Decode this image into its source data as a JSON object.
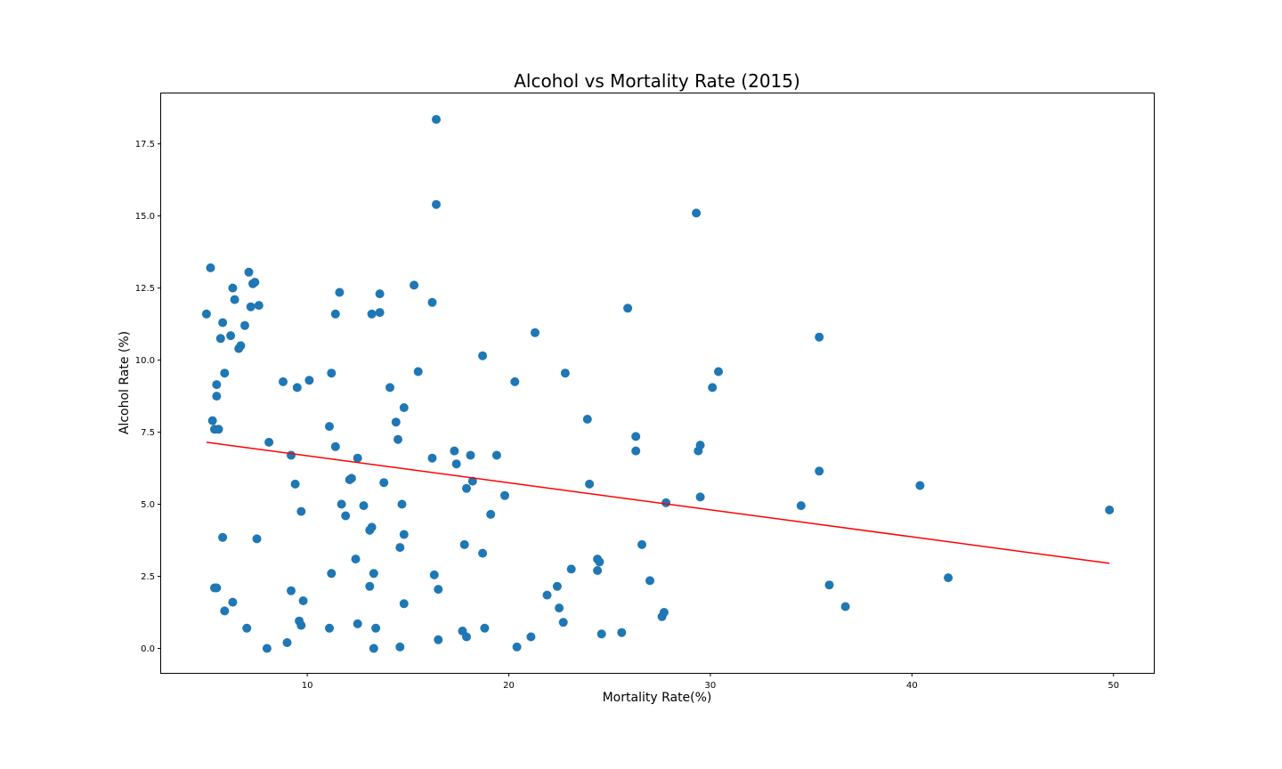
{
  "chart_data": {
    "type": "scatter",
    "title": "Alcohol vs Mortality Rate (2015)",
    "xlabel": "Mortality Rate(%)",
    "ylabel": "Alcohol Rate (%)",
    "xlim": [
      2.75,
      52.0
    ],
    "ylim": [
      -0.85,
      19.25
    ],
    "xticks": [
      10,
      20,
      30,
      40,
      50
    ],
    "xtick_labels": [
      "10",
      "20",
      "30",
      "40",
      "50"
    ],
    "yticks": [
      0.0,
      2.5,
      5.0,
      7.5,
      10.0,
      12.5,
      15.0,
      17.5
    ],
    "ytick_labels": [
      "0.0",
      "2.5",
      "5.0",
      "7.5",
      "10.0",
      "12.5",
      "15.0",
      "17.5"
    ],
    "grid": false,
    "point_color": "#1f77b4",
    "line_color": "#ff0000",
    "regression": {
      "x": [
        5.0,
        49.8
      ],
      "y": [
        7.15,
        2.95
      ]
    },
    "points": [
      [
        5.0,
        11.6
      ],
      [
        5.2,
        13.2
      ],
      [
        5.3,
        7.9
      ],
      [
        5.4,
        7.6
      ],
      [
        5.5,
        9.15
      ],
      [
        5.5,
        8.75
      ],
      [
        5.6,
        7.6
      ],
      [
        5.4,
        2.1
      ],
      [
        5.5,
        2.1
      ],
      [
        5.7,
        10.75
      ],
      [
        5.8,
        11.3
      ],
      [
        5.8,
        3.85
      ],
      [
        5.9,
        9.55
      ],
      [
        5.9,
        1.3
      ],
      [
        6.2,
        10.85
      ],
      [
        6.3,
        12.5
      ],
      [
        6.3,
        1.6
      ],
      [
        6.4,
        12.1
      ],
      [
        6.6,
        10.4
      ],
      [
        6.7,
        10.5
      ],
      [
        6.9,
        11.2
      ],
      [
        7.0,
        0.7
      ],
      [
        7.1,
        13.05
      ],
      [
        7.2,
        11.85
      ],
      [
        7.3,
        12.65
      ],
      [
        7.4,
        12.7
      ],
      [
        7.5,
        3.8
      ],
      [
        7.6,
        11.9
      ],
      [
        8.1,
        7.15
      ],
      [
        8.0,
        0.0
      ],
      [
        8.8,
        9.25
      ],
      [
        9.0,
        0.2
      ],
      [
        9.2,
        6.7
      ],
      [
        9.2,
        2.0
      ],
      [
        9.4,
        5.7
      ],
      [
        9.5,
        9.05
      ],
      [
        9.6,
        0.95
      ],
      [
        9.7,
        4.75
      ],
      [
        9.7,
        0.8
      ],
      [
        9.8,
        1.65
      ],
      [
        10.1,
        9.3
      ],
      [
        11.2,
        9.55
      ],
      [
        11.1,
        7.7
      ],
      [
        11.1,
        0.7
      ],
      [
        11.2,
        2.6
      ],
      [
        11.4,
        7.0
      ],
      [
        11.4,
        11.6
      ],
      [
        11.6,
        12.35
      ],
      [
        11.7,
        5.0
      ],
      [
        11.9,
        4.6
      ],
      [
        12.1,
        5.85
      ],
      [
        12.2,
        5.9
      ],
      [
        12.4,
        3.1
      ],
      [
        12.5,
        6.6
      ],
      [
        12.5,
        0.85
      ],
      [
        12.8,
        4.95
      ],
      [
        13.1,
        4.1
      ],
      [
        13.1,
        2.15
      ],
      [
        13.2,
        4.2
      ],
      [
        13.2,
        11.6
      ],
      [
        13.3,
        2.6
      ],
      [
        13.3,
        0.0
      ],
      [
        13.4,
        0.7
      ],
      [
        13.6,
        11.65
      ],
      [
        13.6,
        12.3
      ],
      [
        13.8,
        5.75
      ],
      [
        14.1,
        9.05
      ],
      [
        14.4,
        7.85
      ],
      [
        14.5,
        7.25
      ],
      [
        14.6,
        3.5
      ],
      [
        14.6,
        0.05
      ],
      [
        14.7,
        5.0
      ],
      [
        14.8,
        8.35
      ],
      [
        14.8,
        3.95
      ],
      [
        14.8,
        1.55
      ],
      [
        15.3,
        12.6
      ],
      [
        15.5,
        9.6
      ],
      [
        16.2,
        12.0
      ],
      [
        16.2,
        6.6
      ],
      [
        16.3,
        2.55
      ],
      [
        16.4,
        18.35
      ],
      [
        16.4,
        15.4
      ],
      [
        16.5,
        2.05
      ],
      [
        16.5,
        0.3
      ],
      [
        17.3,
        6.85
      ],
      [
        17.4,
        6.4
      ],
      [
        17.8,
        3.6
      ],
      [
        17.7,
        0.6
      ],
      [
        17.9,
        5.55
      ],
      [
        17.9,
        0.4
      ],
      [
        18.1,
        6.7
      ],
      [
        18.2,
        5.8
      ],
      [
        18.7,
        10.15
      ],
      [
        18.7,
        3.3
      ],
      [
        18.8,
        0.7
      ],
      [
        19.1,
        4.65
      ],
      [
        19.4,
        6.7
      ],
      [
        19.8,
        5.3
      ],
      [
        20.3,
        9.25
      ],
      [
        20.4,
        0.05
      ],
      [
        21.1,
        0.4
      ],
      [
        21.3,
        10.95
      ],
      [
        21.9,
        1.85
      ],
      [
        22.4,
        2.15
      ],
      [
        22.5,
        1.4
      ],
      [
        22.7,
        0.9
      ],
      [
        22.8,
        9.55
      ],
      [
        23.1,
        2.75
      ],
      [
        23.9,
        7.95
      ],
      [
        24.0,
        5.7
      ],
      [
        24.4,
        3.1
      ],
      [
        24.4,
        2.7
      ],
      [
        24.5,
        3.0
      ],
      [
        24.6,
        0.5
      ],
      [
        25.6,
        0.55
      ],
      [
        25.9,
        11.8
      ],
      [
        26.3,
        7.35
      ],
      [
        26.3,
        6.85
      ],
      [
        26.6,
        3.6
      ],
      [
        27.0,
        2.35
      ],
      [
        27.6,
        1.1
      ],
      [
        27.7,
        1.25
      ],
      [
        27.8,
        5.05
      ],
      [
        29.3,
        15.1
      ],
      [
        29.4,
        6.85
      ],
      [
        29.5,
        7.05
      ],
      [
        29.5,
        5.25
      ],
      [
        30.1,
        9.05
      ],
      [
        30.4,
        9.6
      ],
      [
        34.5,
        4.95
      ],
      [
        35.4,
        6.15
      ],
      [
        35.4,
        10.8
      ],
      [
        35.9,
        2.2
      ],
      [
        36.7,
        1.45
      ],
      [
        40.4,
        5.65
      ],
      [
        41.8,
        2.45
      ],
      [
        49.8,
        4.8
      ]
    ]
  }
}
